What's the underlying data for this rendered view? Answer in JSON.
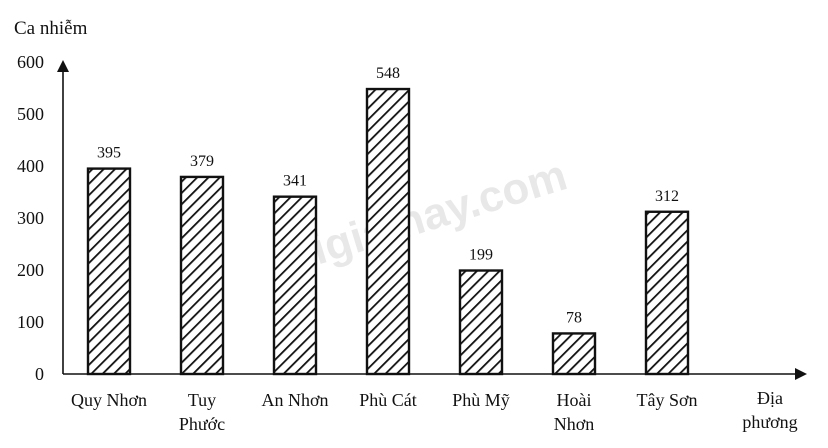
{
  "chart_data": {
    "type": "bar",
    "ylabel": "Ca nhiễm",
    "xlabel": "Địa phương",
    "ylim": [
      0,
      600
    ],
    "yticks": [
      "0",
      "100",
      "200",
      "300",
      "400",
      "500",
      "600"
    ],
    "grid": false,
    "legend": "none",
    "bar_pattern": "diagonal-hatch",
    "colors": {
      "bar_fill": "#ffffff",
      "hatch": "#111111",
      "axis": "#111111"
    },
    "categories": [
      [
        "Quy Nhơn"
      ],
      [
        "Tuy",
        "Phước"
      ],
      [
        "An Nhơn"
      ],
      [
        "Phù Cát"
      ],
      [
        "Phù Mỹ"
      ],
      [
        "Hoài",
        "Nhơn"
      ],
      [
        "Tây Sơn"
      ]
    ],
    "values": [
      395,
      379,
      341,
      548,
      199,
      78,
      312
    ]
  },
  "watermark": "loigiaihay.com"
}
